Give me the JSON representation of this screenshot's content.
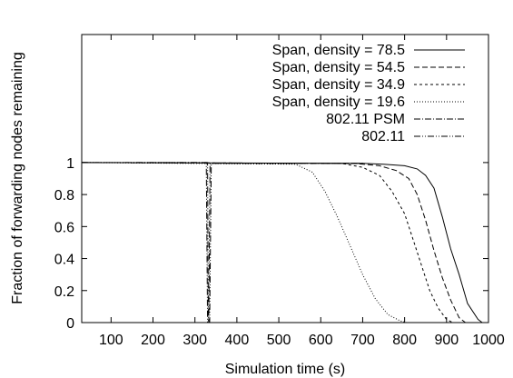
{
  "chart_data": {
    "type": "line",
    "xlabel": "Simulation time (s)",
    "ylabel": "Fraction of forwarding nodes remaining",
    "xlim": [
      30,
      1000
    ],
    "ylim": [
      0,
      1.8
    ],
    "xticks": [
      100,
      200,
      300,
      400,
      500,
      600,
      700,
      800,
      900,
      1000
    ],
    "yticks": [
      0,
      0.2,
      0.4,
      0.6,
      0.8,
      1
    ],
    "ytick_labels": [
      "0",
      "0.2",
      "0.4",
      "0.6",
      "0.8",
      "1"
    ],
    "grid": false,
    "legend_position": "top-right",
    "series": [
      {
        "name": "Span, density = 78.5",
        "style": "solid",
        "x": [
          30,
          700,
          750,
          800,
          830,
          850,
          870,
          890,
          910,
          930,
          950,
          975,
          985
        ],
        "y": [
          1.0,
          0.995,
          0.99,
          0.98,
          0.96,
          0.92,
          0.84,
          0.66,
          0.46,
          0.3,
          0.12,
          0.02,
          0
        ]
      },
      {
        "name": "Span, density = 54.5",
        "style": "dashed",
        "x": [
          30,
          680,
          740,
          780,
          810,
          830,
          850,
          870,
          890,
          910,
          930,
          945
        ],
        "y": [
          1.0,
          0.995,
          0.98,
          0.95,
          0.9,
          0.8,
          0.64,
          0.45,
          0.28,
          0.14,
          0.03,
          0
        ]
      },
      {
        "name": "Span, density = 34.9",
        "style": "short-dash",
        "x": [
          30,
          650,
          700,
          740,
          770,
          800,
          820,
          840,
          860,
          880,
          900,
          915
        ],
        "y": [
          1.0,
          0.995,
          0.97,
          0.92,
          0.82,
          0.68,
          0.52,
          0.36,
          0.2,
          0.09,
          0.02,
          0
        ]
      },
      {
        "name": "Span, density = 19.6",
        "style": "dotted",
        "x": [
          30,
          540,
          580,
          610,
          640,
          670,
          700,
          730,
          760,
          790,
          805
        ],
        "y": [
          1.0,
          0.99,
          0.94,
          0.82,
          0.66,
          0.48,
          0.3,
          0.15,
          0.05,
          0.01,
          0
        ]
      },
      {
        "name": "802.11 PSM",
        "style": "dash-dot",
        "x": [
          30,
          327,
          330,
          333,
          336,
          700
        ],
        "y": [
          1.0,
          1.0,
          0,
          0,
          0.995,
          0.995
        ]
      },
      {
        "name": "802.11",
        "style": "dash-dot-dot",
        "x": [
          30,
          330,
          332,
          335,
          339,
          700
        ],
        "y": [
          1.0,
          1.0,
          0,
          0,
          0.995,
          0.995
        ]
      }
    ]
  }
}
